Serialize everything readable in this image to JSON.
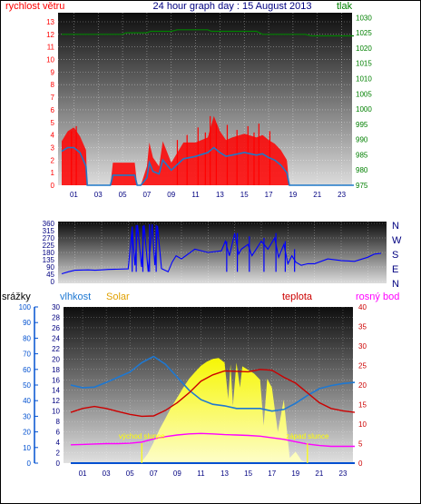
{
  "colors": {
    "wind": "#ff0000",
    "wind_avg": "#1f78c8",
    "pressure": "#008000",
    "direction": "#0000ff",
    "dir_labels": "#000080",
    "rain": "#0050d0",
    "humidity": "#1e78d2",
    "solar": "#ffff00",
    "temp": "#cc0000",
    "dew": "#ff00ff",
    "title": "#000080",
    "grid": "#ffffff"
  },
  "chart_data": [
    {
      "type": "line",
      "name": "wind_pressure",
      "title": "24 hour graph day : 15 August 2013",
      "ylabel_left": "rychlost větru",
      "ylabel_right": "tlak",
      "ylim_left": [
        0,
        13
      ],
      "ylim_right": [
        975,
        1031
      ],
      "yticks_left": [
        "0",
        "1",
        "2",
        "3",
        "4",
        "5",
        "6",
        "7",
        "8",
        "9",
        "10",
        "11",
        "12",
        "13"
      ],
      "yticks_right": [
        "975",
        "980",
        "985",
        "990",
        "995",
        "1000",
        "1005",
        "1010",
        "1015",
        "1020",
        "1025",
        "1030"
      ],
      "xticks": [
        "01",
        "03",
        "05",
        "07",
        "09",
        "11",
        "13",
        "15",
        "17",
        "19",
        "21",
        "23"
      ],
      "grid": true,
      "series": [
        {
          "id": "gust",
          "x": [
            0,
            0.5,
            1,
            1.5,
            2,
            2.1,
            4,
            4.2,
            6,
            6.2,
            6.5,
            7,
            7.2,
            7.5,
            8,
            8.3,
            9,
            10,
            11,
            12,
            12.5,
            13,
            13.5,
            14,
            15,
            16,
            16.5,
            17,
            17.5,
            18,
            18.5,
            18.7,
            19,
            24
          ],
          "y": [
            3.5,
            4.3,
            4.6,
            3.9,
            2.8,
            0,
            0,
            1.8,
            1.8,
            0,
            0,
            1.5,
            3.4,
            2.2,
            1.5,
            3.5,
            1.8,
            3.4,
            3.4,
            3.8,
            5.5,
            4.3,
            3.6,
            3.8,
            4.1,
            3.8,
            4.0,
            3.6,
            3.3,
            2.8,
            2.0,
            0,
            0,
            0
          ]
        },
        {
          "id": "average",
          "x": [
            0,
            0.5,
            1,
            1.5,
            2,
            2.1,
            4,
            4.2,
            6,
            6.2,
            6.5,
            7,
            7.2,
            7.5,
            8,
            8.3,
            9,
            10,
            11,
            12,
            12.5,
            13,
            13.5,
            14,
            15,
            16,
            16.5,
            17,
            17.5,
            18,
            18.5,
            18.7,
            19,
            24
          ],
          "y": [
            2.7,
            3.0,
            3.0,
            2.6,
            1.5,
            0,
            0,
            0.8,
            0.8,
            0,
            0,
            0.6,
            1.8,
            1.1,
            0.9,
            2.0,
            1.2,
            2.1,
            2.3,
            2.6,
            3.0,
            2.6,
            2.3,
            2.4,
            2.6,
            2.4,
            2.5,
            2.2,
            2.0,
            1.6,
            1.0,
            0,
            0,
            0
          ]
        },
        {
          "id": "pressure",
          "x": [
            0,
            5,
            5.3,
            7,
            7.3,
            9,
            9.5,
            12,
            12.3,
            16,
            16.5,
            20,
            20.5,
            24
          ],
          "y": [
            1024.5,
            1024.5,
            1025,
            1025,
            1025.5,
            1025.5,
            1026,
            1026,
            1025.5,
            1025.5,
            1024.5,
            1024.5,
            1024,
            1024
          ]
        }
      ]
    },
    {
      "type": "line",
      "name": "wind_direction",
      "ylim": [
        0,
        360
      ],
      "yticks": [
        "0",
        "45",
        "90",
        "135",
        "180",
        "225",
        "270",
        "315",
        "360"
      ],
      "dir_labels": [
        "N",
        "W",
        "S",
        "E",
        "N"
      ],
      "x": [
        0,
        0.5,
        1,
        2,
        2.5,
        3,
        3.5,
        5,
        5.3,
        5.5,
        5.7,
        6,
        6.2,
        6.5,
        6.8,
        7,
        7.2,
        7.5,
        8,
        8.3,
        8.6,
        9,
        10,
        11,
        12,
        12.3,
        12.6,
        13,
        13.3,
        13.5,
        14,
        14.3,
        15,
        15.5,
        16,
        16.3,
        16.7,
        17,
        17.3,
        17.6,
        18,
        18.5,
        19,
        20,
        21,
        22,
        23,
        23.5,
        24
      ],
      "y": [
        48,
        60,
        70,
        72,
        70,
        72,
        75,
        78,
        340,
        100,
        350,
        90,
        350,
        60,
        355,
        100,
        345,
        80,
        60,
        120,
        160,
        140,
        200,
        180,
        190,
        250,
        160,
        300,
        170,
        200,
        230,
        160,
        250,
        200,
        270,
        150,
        230,
        110,
        160,
        120,
        100,
        110,
        110,
        140,
        130,
        125,
        150,
        170,
        175
      ]
    },
    {
      "type": "line",
      "name": "weather",
      "labels": {
        "rain": "srážky",
        "humidity": "vlhkost",
        "solar": "Solar",
        "temp": "teplota",
        "dew": "rosný bod"
      },
      "ylim_rain": [
        0,
        100
      ],
      "ylim_left": [
        0,
        30
      ],
      "ylim_right": [
        0,
        40
      ],
      "yticks_rain": [
        "0",
        "10",
        "20",
        "30",
        "40",
        "50",
        "60",
        "70",
        "80",
        "90",
        "100"
      ],
      "yticks_left": [
        "0",
        "2",
        "4",
        "6",
        "8",
        "10",
        "12",
        "14",
        "16",
        "18",
        "20",
        "22",
        "24",
        "26",
        "28",
        "30"
      ],
      "yticks_right": [
        "0",
        "5",
        "10",
        "15",
        "20",
        "25",
        "30",
        "35",
        "40"
      ],
      "xticks": [
        "01",
        "03",
        "05",
        "07",
        "09",
        "11",
        "13",
        "15",
        "17",
        "19",
        "21",
        "23"
      ],
      "annotations": {
        "sunrise": "východ slunce",
        "sunset": "západ slunce",
        "sunrise_hour": 6,
        "sunset_hour": 20
      },
      "series": [
        {
          "id": "humidity",
          "x": [
            0,
            1,
            2,
            3,
            4,
            5,
            6,
            7,
            8,
            9,
            10,
            11,
            12,
            13,
            14,
            15,
            16,
            17,
            18,
            19,
            20,
            21,
            22,
            23,
            24
          ],
          "y": [
            15,
            14.5,
            14.6,
            15.5,
            16.5,
            17.5,
            19.3,
            20.5,
            19,
            16.5,
            14,
            12.2,
            11.3,
            11,
            10.5,
            10.5,
            10.5,
            10,
            10.3,
            11.5,
            13,
            14.3,
            14.9,
            15.3,
            15.5
          ]
        },
        {
          "id": "solar",
          "x": [
            0,
            5.5,
            6,
            6.5,
            7,
            7.5,
            8,
            8.5,
            9,
            9.5,
            10,
            10.5,
            11,
            11.5,
            12,
            12.5,
            13,
            13.3,
            13.5,
            13.7,
            14,
            14.3,
            14.5,
            15,
            15.5,
            16,
            16.3,
            16.6,
            17,
            17.5,
            18,
            18.5,
            19,
            19.5,
            20,
            24
          ],
          "y": [
            0,
            0,
            0.3,
            1.8,
            4,
            6.5,
            8.6,
            10.8,
            12.6,
            14.5,
            16.2,
            17.5,
            18.7,
            19.5,
            20,
            20.2,
            19.3,
            12.3,
            19,
            11,
            19.3,
            14.5,
            18.6,
            17.9,
            17.2,
            16,
            7.2,
            16.2,
            14.5,
            6,
            12.2,
            1,
            2.2,
            0.5,
            0,
            0
          ]
        },
        {
          "id": "temperature",
          "x": [
            0,
            1,
            2,
            3,
            4,
            5,
            6,
            7,
            8,
            9,
            10,
            11,
            12,
            13,
            14,
            15,
            16,
            17,
            18,
            19,
            20,
            21,
            22,
            23,
            24
          ],
          "y": [
            13,
            14,
            14.5,
            14,
            13.2,
            12.5,
            12,
            12.1,
            13.5,
            15.5,
            18,
            21,
            22.6,
            23.6,
            23.5,
            23.4,
            24,
            23.8,
            22,
            20.5,
            18,
            15.5,
            14,
            13.4,
            13
          ]
        },
        {
          "id": "dew_point",
          "x": [
            0,
            1,
            2,
            3,
            4,
            5,
            6,
            7,
            8,
            9,
            10,
            11,
            12,
            13,
            14,
            15,
            16,
            17,
            18,
            19,
            20,
            21,
            22,
            23,
            24
          ],
          "y": [
            4.7,
            4.8,
            4.9,
            5,
            5,
            5.1,
            5.4,
            6.2,
            6.8,
            7.2,
            7.5,
            7.6,
            7.5,
            7.3,
            7.2,
            7.1,
            6.9,
            6.5,
            6.1,
            5.5,
            4.9,
            4.5,
            4.3,
            4.3,
            4.3
          ]
        },
        {
          "id": "rain",
          "x": [
            0,
            24
          ],
          "y": [
            0,
            0
          ]
        }
      ]
    }
  ]
}
